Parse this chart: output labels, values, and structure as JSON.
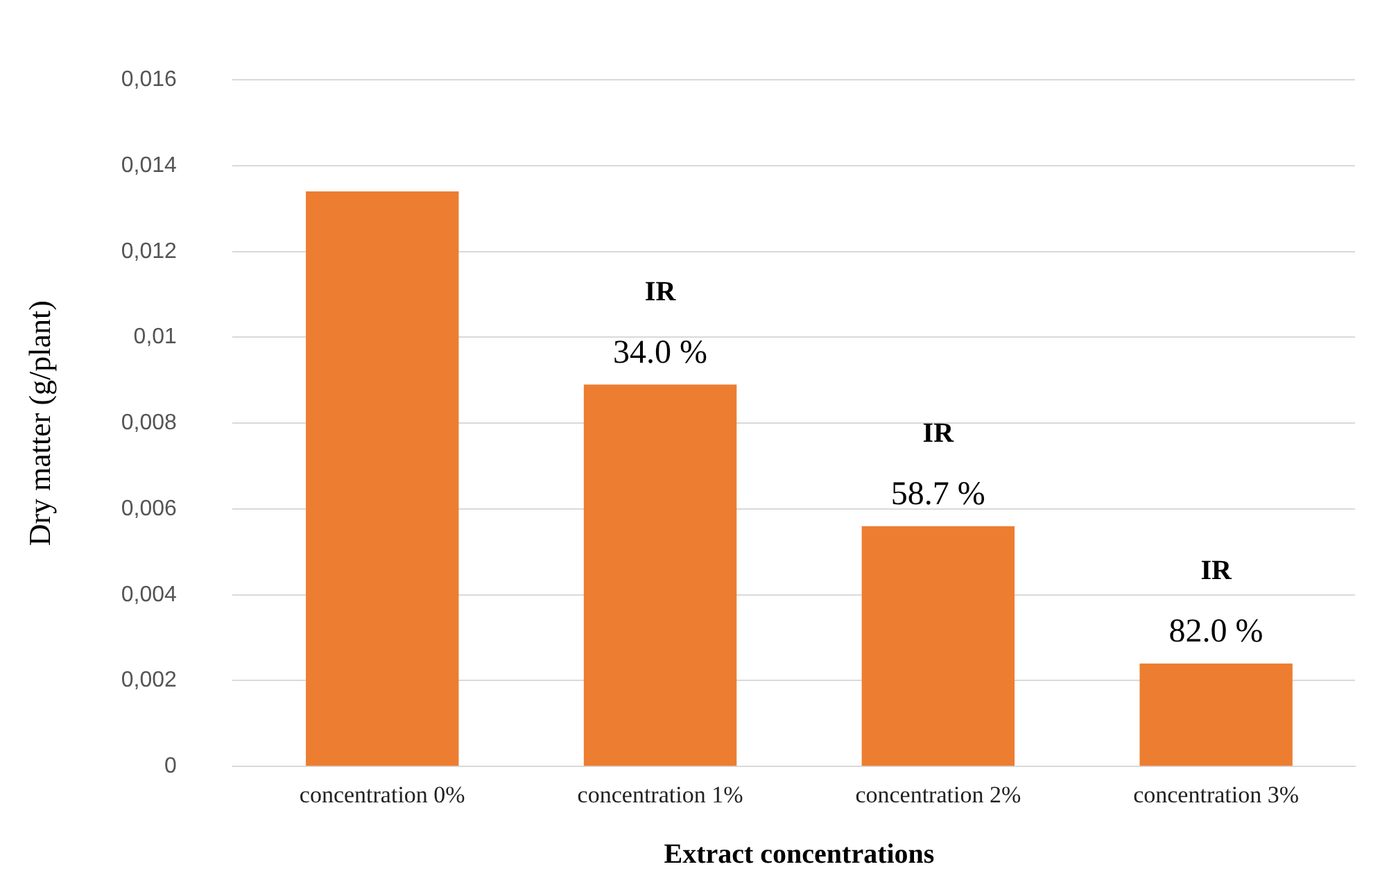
{
  "chart_data": {
    "type": "bar",
    "xlabel": "Extract concentrations",
    "ylabel": "Dry matter (g/plant)",
    "categories": [
      "concentration 0%",
      "concentration 1%",
      "concentration 2%",
      "concentration 3%"
    ],
    "values": [
      0.0134,
      0.0089,
      0.0056,
      0.0024
    ],
    "color": "#ed7d31",
    "ylim": [
      0,
      0.016
    ],
    "yticks": [
      0,
      {
        "value": 0.002,
        "label": "0,002"
      },
      {
        "value": 0.004,
        "label": "0,004"
      },
      {
        "value": 0.006,
        "label": "0,006"
      },
      {
        "value": 0.008,
        "label": "0,008"
      },
      {
        "value": 0.01,
        "label": "0,01"
      },
      {
        "value": 0.012,
        "label": "0,012"
      },
      {
        "value": 0.014,
        "label": "0,014"
      },
      {
        "value": 0.016,
        "label": "0,016"
      }
    ],
    "grid": "y",
    "legend": false,
    "annotations": [
      {
        "text": "IR",
        "x": "concentration 1%",
        "y": 0.0089
      },
      {
        "text": "34.0 %",
        "x": "concentration 1%",
        "y": 0.0089
      },
      {
        "text": "IR",
        "x": "concentration 2%",
        "y": 0.0056
      },
      {
        "text": "58.7 %",
        "x": "concentration 2%",
        "y": 0.0056
      },
      {
        "text": "IR",
        "x": "concentration 3%",
        "y": 0.0024
      },
      {
        "text": "82.0 %",
        "x": "concentration 3%",
        "y": 0.0024
      }
    ]
  }
}
